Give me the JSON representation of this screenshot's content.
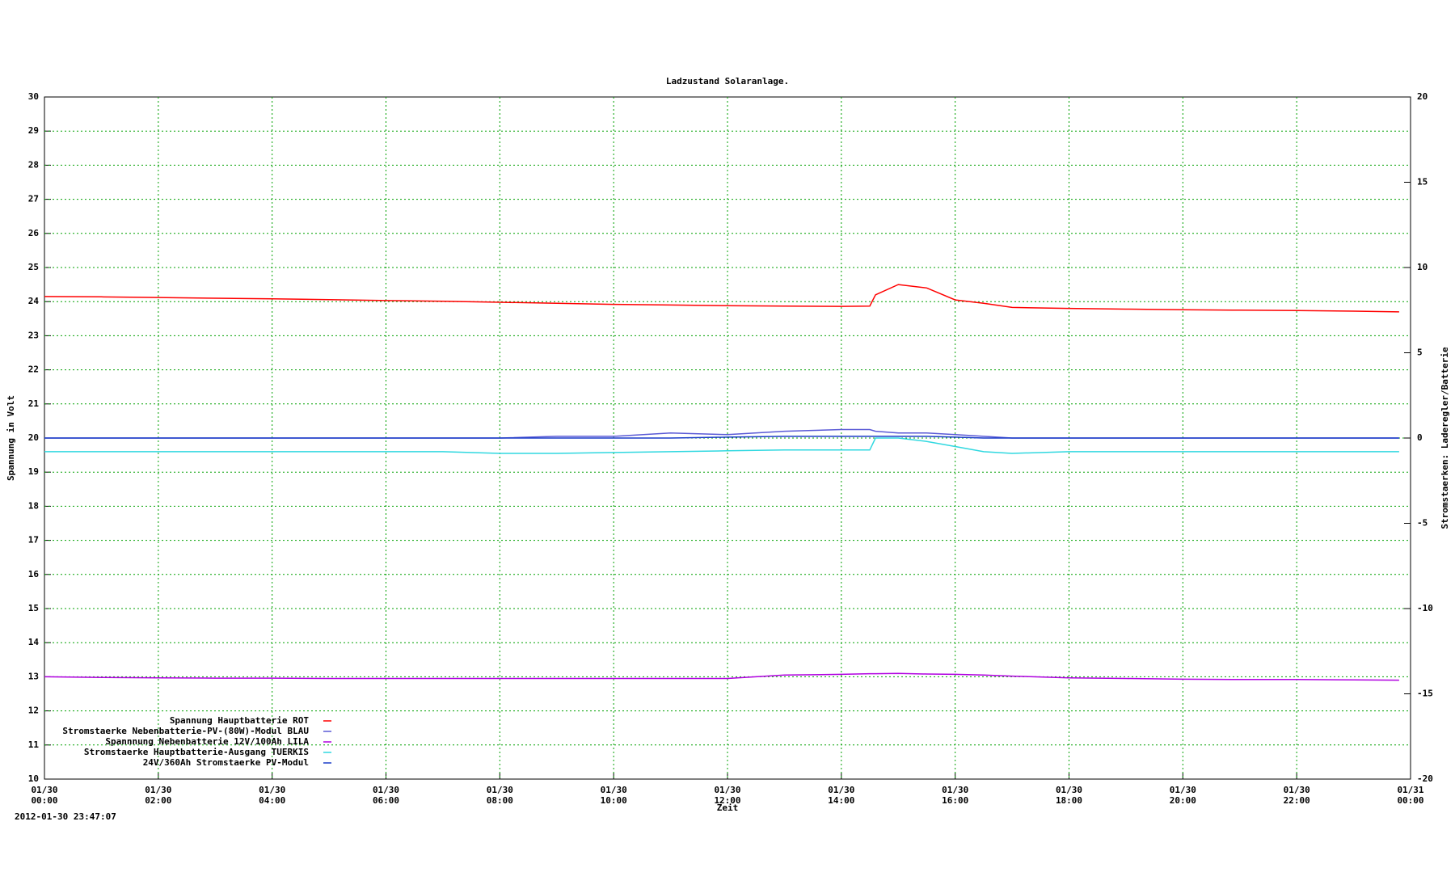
{
  "chart_data": {
    "type": "line",
    "title": "Ladzustand Solaranlage.",
    "x_label": "Zeit",
    "y_label": "Spannung in Volt",
    "y2_label": "Stromstaerken: Laderegler/Batterie",
    "timestamp": "2012-01-30 23:47:07",
    "x": [
      0,
      1,
      2,
      3,
      4,
      5,
      6,
      7,
      8,
      9,
      10,
      11,
      12,
      13,
      14,
      14.5,
      14.6,
      15,
      15.5,
      16,
      16.5,
      17,
      18,
      19,
      20,
      21,
      22,
      23,
      23.8
    ],
    "xlim": [
      0,
      24
    ],
    "xticks": [
      {
        "value": 0,
        "label": "01/30 00:00"
      },
      {
        "value": 2,
        "label": "01/30 02:00"
      },
      {
        "value": 4,
        "label": "01/30 04:00"
      },
      {
        "value": 6,
        "label": "01/30 06:00"
      },
      {
        "value": 8,
        "label": "01/30 08:00"
      },
      {
        "value": 10,
        "label": "01/30 10:00"
      },
      {
        "value": 12,
        "label": "01/30 12:00"
      },
      {
        "value": 14,
        "label": "01/30 14:00"
      },
      {
        "value": 16,
        "label": "01/30 16:00"
      },
      {
        "value": 18,
        "label": "01/30 18:00"
      },
      {
        "value": 20,
        "label": "01/30 20:00"
      },
      {
        "value": 22,
        "label": "01/30 22:00"
      },
      {
        "value": 24,
        "label": "01/31 00:00"
      }
    ],
    "ylim": [
      10,
      30
    ],
    "yticks": [
      10,
      11,
      12,
      13,
      14,
      15,
      16,
      17,
      18,
      19,
      20,
      21,
      22,
      23,
      24,
      25,
      26,
      27,
      28,
      29,
      30
    ],
    "y2lim": [
      -20,
      20
    ],
    "y2ticks": [
      -20,
      -15,
      -10,
      -5,
      0,
      5,
      10,
      15,
      20
    ],
    "grid": true,
    "legend": "lower left",
    "series": [
      {
        "name": "Spannung Hauptbatterie ROT",
        "color": "#ff0000",
        "values": [
          24.15,
          24.14,
          24.12,
          24.1,
          24.08,
          24.06,
          24.03,
          24.01,
          23.98,
          23.95,
          23.92,
          23.9,
          23.88,
          23.87,
          23.86,
          23.87,
          24.2,
          24.5,
          24.4,
          24.05,
          23.95,
          23.83,
          23.8,
          23.78,
          23.76,
          23.75,
          23.74,
          23.72,
          23.7
        ]
      },
      {
        "name": "Stromstaerke Nebenbatterie-PV-(80W)-Modul BLAU",
        "color": "#5a5ad6",
        "axis": "y2",
        "values": [
          0,
          0,
          0,
          0,
          0,
          0,
          0,
          0,
          0,
          0.1,
          0.1,
          0.3,
          0.2,
          0.4,
          0.5,
          0.5,
          0.4,
          0.3,
          0.3,
          0.2,
          0.1,
          0,
          0,
          0,
          0,
          0,
          0,
          0,
          0
        ]
      },
      {
        "name": "Spannnung Nebenbatterie 12V/100Ah LILA",
        "color": "#b000e0",
        "values": [
          13.0,
          12.98,
          12.97,
          12.96,
          12.96,
          12.95,
          12.95,
          12.95,
          12.95,
          12.95,
          12.95,
          12.95,
          12.95,
          13.05,
          13.07,
          13.09,
          13.09,
          13.1,
          13.08,
          13.07,
          13.05,
          13.02,
          12.97,
          12.95,
          12.93,
          12.92,
          12.92,
          12.91,
          12.9
        ]
      },
      {
        "name": "Stromstaerke Hauptbatterie-Ausgang TUERKIS",
        "color": "#30d8e0",
        "axis": "y2",
        "values": [
          -0.8,
          -0.8,
          -0.8,
          -0.8,
          -0.8,
          -0.8,
          -0.8,
          -0.8,
          -0.9,
          -0.9,
          -0.85,
          -0.8,
          -0.75,
          -0.7,
          -0.7,
          -0.7,
          0,
          0,
          -0.2,
          -0.5,
          -0.8,
          -0.9,
          -0.8,
          -0.8,
          -0.8,
          -0.8,
          -0.8,
          -0.8,
          -0.8
        ]
      },
      {
        "name": "24V/360Ah Stromstaerke PV-Modul",
        "color": "#1a3cc8",
        "axis": "y2",
        "values": [
          0,
          0,
          0,
          0,
          0,
          0,
          0,
          0,
          0,
          0,
          0,
          0,
          0.05,
          0.1,
          0.1,
          0.1,
          0.1,
          0.1,
          0.1,
          0.05,
          0,
          0,
          0,
          0,
          0,
          0,
          0,
          0,
          0
        ]
      }
    ]
  }
}
